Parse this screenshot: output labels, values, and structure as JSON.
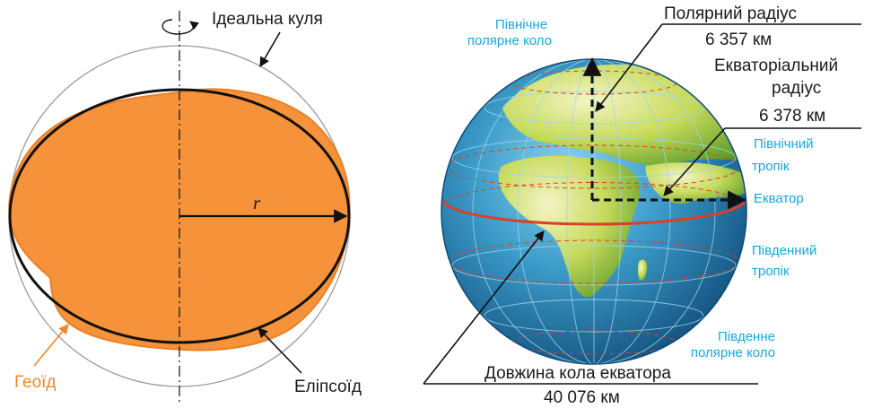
{
  "left_panel": {
    "ideal_sphere_label": "Ідеальна куля",
    "radius_symbol": "r",
    "geoid_label": "Геоїд",
    "ellipsoid_label": "Еліпсоїд"
  },
  "right_panel": {
    "polar_radius_label": "Полярний радіус",
    "polar_radius_value": "6 357 км",
    "equatorial_radius_label_line1": "Екваторіальний",
    "equatorial_radius_label_line2": "радіус",
    "equatorial_radius_value": "6 378 км",
    "arctic_circle_line1": "Північне",
    "arctic_circle_line2": "полярне коло",
    "tropic_cancer_line1": "Північний",
    "tropic_cancer_line2": "тропік",
    "equator_label": "Екватор",
    "tropic_capricorn_line1": "Південний",
    "tropic_capricorn_line2": "тропік",
    "antarctic_circle_line1": "Південне",
    "antarctic_circle_line2": "полярне коло",
    "equator_length_label": "Довжина кола екватора",
    "equator_length_value": "40 076 км"
  },
  "colors": {
    "geoid_fill": "#f5923a",
    "geoid_stroke": "#e9812a",
    "cyan_text": "#1aa6d9",
    "equator_line": "#d9402a",
    "ocean": "#1f6f9e",
    "land": "#b9d24a"
  }
}
